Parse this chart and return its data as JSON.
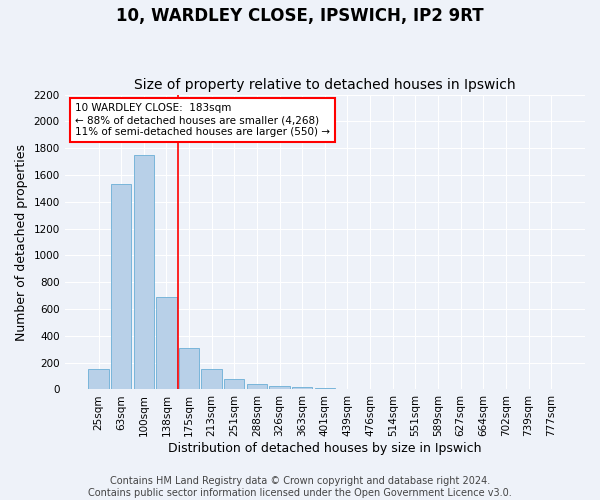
{
  "title": "10, WARDLEY CLOSE, IPSWICH, IP2 9RT",
  "subtitle": "Size of property relative to detached houses in Ipswich",
  "xlabel": "Distribution of detached houses by size in Ipswich",
  "ylabel": "Number of detached properties",
  "categories": [
    "25sqm",
    "63sqm",
    "100sqm",
    "138sqm",
    "175sqm",
    "213sqm",
    "251sqm",
    "288sqm",
    "326sqm",
    "363sqm",
    "401sqm",
    "439sqm",
    "476sqm",
    "514sqm",
    "551sqm",
    "589sqm",
    "627sqm",
    "664sqm",
    "702sqm",
    "739sqm",
    "777sqm"
  ],
  "values": [
    155,
    1530,
    1750,
    690,
    310,
    155,
    80,
    43,
    27,
    18,
    14,
    0,
    0,
    0,
    0,
    0,
    0,
    0,
    0,
    0,
    0
  ],
  "bar_color": "#b8d0e8",
  "bar_edge_color": "#6aaed6",
  "vline_x_index": 3.5,
  "vline_color": "red",
  "annotation_line1": "10 WARDLEY CLOSE:  183sqm",
  "annotation_line2": "← 88% of detached houses are smaller (4,268)",
  "annotation_line3": "11% of semi-detached houses are larger (550) →",
  "annotation_box_color": "white",
  "annotation_box_edge_color": "red",
  "ylim": [
    0,
    2200
  ],
  "yticks": [
    0,
    200,
    400,
    600,
    800,
    1000,
    1200,
    1400,
    1600,
    1800,
    2000,
    2200
  ],
  "footer_line1": "Contains HM Land Registry data © Crown copyright and database right 2024.",
  "footer_line2": "Contains public sector information licensed under the Open Government Licence v3.0.",
  "background_color": "#eef2f9",
  "grid_color": "white",
  "title_fontsize": 12,
  "subtitle_fontsize": 10,
  "axis_label_fontsize": 9,
  "tick_fontsize": 7.5,
  "footer_fontsize": 7
}
